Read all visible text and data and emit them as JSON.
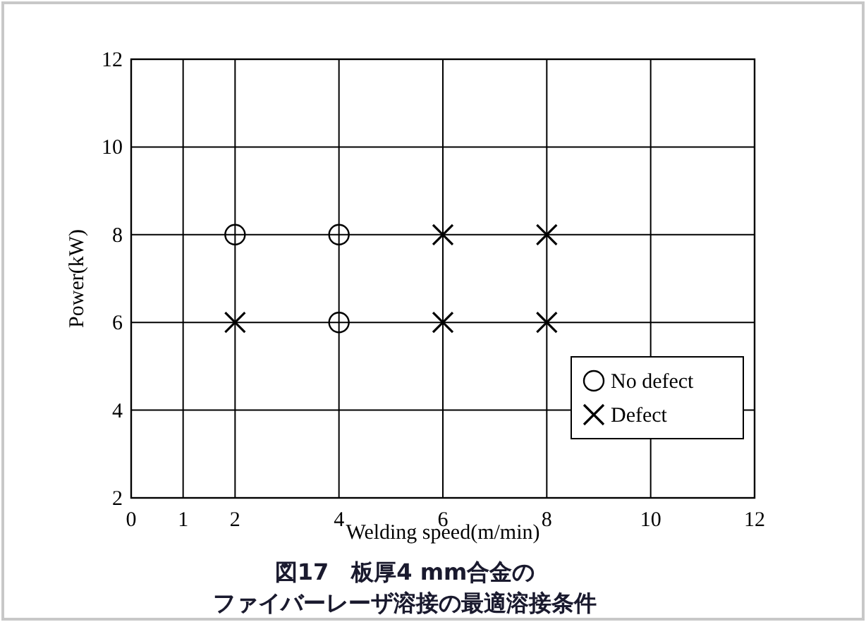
{
  "chart_data": {
    "type": "scatter",
    "title": "図17　板厚4 mm合金の",
    "subtitle": "ファイバーレーザ溶接の最適溶接条件",
    "xlabel": "Welding speed(m/min)",
    "ylabel": "Power(kW)",
    "xlim": [
      0,
      12
    ],
    "xticks": [
      0,
      1,
      2,
      4,
      6,
      8,
      10,
      12
    ],
    "ylim": [
      2,
      12
    ],
    "yticks": [
      2,
      4,
      6,
      8,
      10,
      12
    ],
    "grid": true,
    "legend": "bottom right",
    "series": [
      {
        "name": "No defect",
        "color": "#000000",
        "marker": "circle",
        "x": [
          2,
          4,
          4
        ],
        "values": [
          8,
          8,
          6
        ]
      },
      {
        "name": "Defect",
        "color": "#000000",
        "marker": "cross",
        "x": [
          2,
          6,
          6,
          8,
          8
        ],
        "values": [
          6,
          8,
          6,
          8,
          6
        ]
      }
    ]
  }
}
